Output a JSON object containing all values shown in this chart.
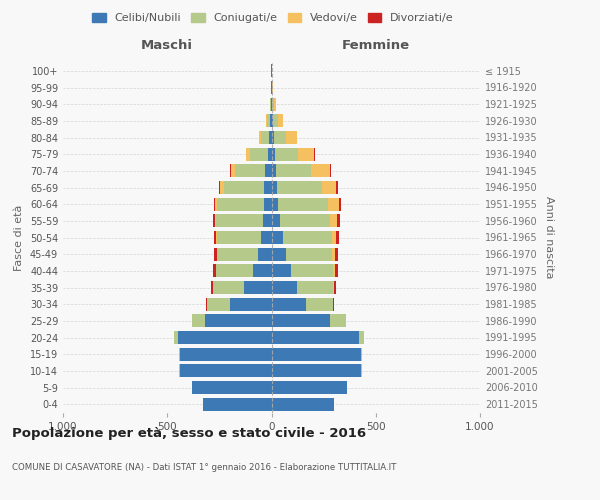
{
  "age_groups": [
    "0-4",
    "5-9",
    "10-14",
    "15-19",
    "20-24",
    "25-29",
    "30-34",
    "35-39",
    "40-44",
    "45-49",
    "50-54",
    "55-59",
    "60-64",
    "65-69",
    "70-74",
    "75-79",
    "80-84",
    "85-89",
    "90-94",
    "95-99",
    "100+"
  ],
  "birth_years": [
    "2011-2015",
    "2006-2010",
    "2001-2005",
    "1996-2000",
    "1991-1995",
    "1986-1990",
    "1981-1985",
    "1976-1980",
    "1971-1975",
    "1966-1970",
    "1961-1965",
    "1956-1960",
    "1951-1955",
    "1946-1950",
    "1941-1945",
    "1936-1940",
    "1931-1935",
    "1926-1930",
    "1921-1925",
    "1916-1920",
    "≤ 1915"
  ],
  "maschi": {
    "celibi": [
      330,
      380,
      440,
      440,
      450,
      320,
      200,
      130,
      90,
      65,
      50,
      40,
      35,
      35,
      30,
      18,
      10,
      5,
      3,
      2,
      1
    ],
    "coniugati": [
      0,
      0,
      2,
      5,
      20,
      60,
      110,
      150,
      175,
      195,
      210,
      225,
      225,
      195,
      145,
      85,
      40,
      15,
      5,
      2,
      1
    ],
    "vedovi": [
      0,
      0,
      0,
      0,
      0,
      0,
      0,
      1,
      2,
      3,
      5,
      5,
      10,
      15,
      20,
      20,
      10,
      5,
      0,
      0,
      0
    ],
    "divorziati": [
      0,
      0,
      0,
      0,
      0,
      2,
      5,
      10,
      12,
      13,
      12,
      10,
      8,
      5,
      5,
      0,
      0,
      0,
      0,
      0,
      0
    ]
  },
  "femmine": {
    "nubili": [
      300,
      360,
      430,
      430,
      420,
      280,
      165,
      120,
      95,
      70,
      55,
      40,
      30,
      25,
      20,
      15,
      10,
      5,
      3,
      2,
      1
    ],
    "coniugate": [
      0,
      0,
      2,
      5,
      25,
      75,
      130,
      175,
      200,
      220,
      235,
      240,
      240,
      215,
      170,
      110,
      60,
      25,
      8,
      2,
      1
    ],
    "vedove": [
      0,
      0,
      0,
      0,
      0,
      0,
      1,
      3,
      8,
      15,
      20,
      35,
      55,
      70,
      90,
      80,
      50,
      25,
      10,
      3,
      1
    ],
    "divorziate": [
      0,
      0,
      0,
      0,
      1,
      3,
      6,
      10,
      14,
      15,
      14,
      12,
      10,
      8,
      5,
      2,
      0,
      0,
      0,
      0,
      0
    ]
  },
  "colors": {
    "celibi": "#3d7ab5",
    "coniugati": "#b5c98a",
    "vedovi": "#f5c060",
    "divorziati": "#cc2222"
  },
  "xlim": 1000,
  "title": "Popolazione per età, sesso e stato civile - 2016",
  "subtitle": "COMUNE DI CASAVATORE (NA) - Dati ISTAT 1° gennaio 2016 - Elaborazione TUTTITALIA.IT",
  "ylabel_left": "Fasce di età",
  "ylabel_right": "Anni di nascita",
  "label_maschi": "Maschi",
  "label_femmine": "Femmine",
  "legend": [
    "Celibi/Nubili",
    "Coniugati/e",
    "Vedovi/e",
    "Divorziati/e"
  ],
  "bg_color": "#f8f8f8",
  "grid_color": "#cccccc",
  "xtick_labels": [
    "1.000",
    "500",
    "0",
    "500",
    "1.000"
  ]
}
